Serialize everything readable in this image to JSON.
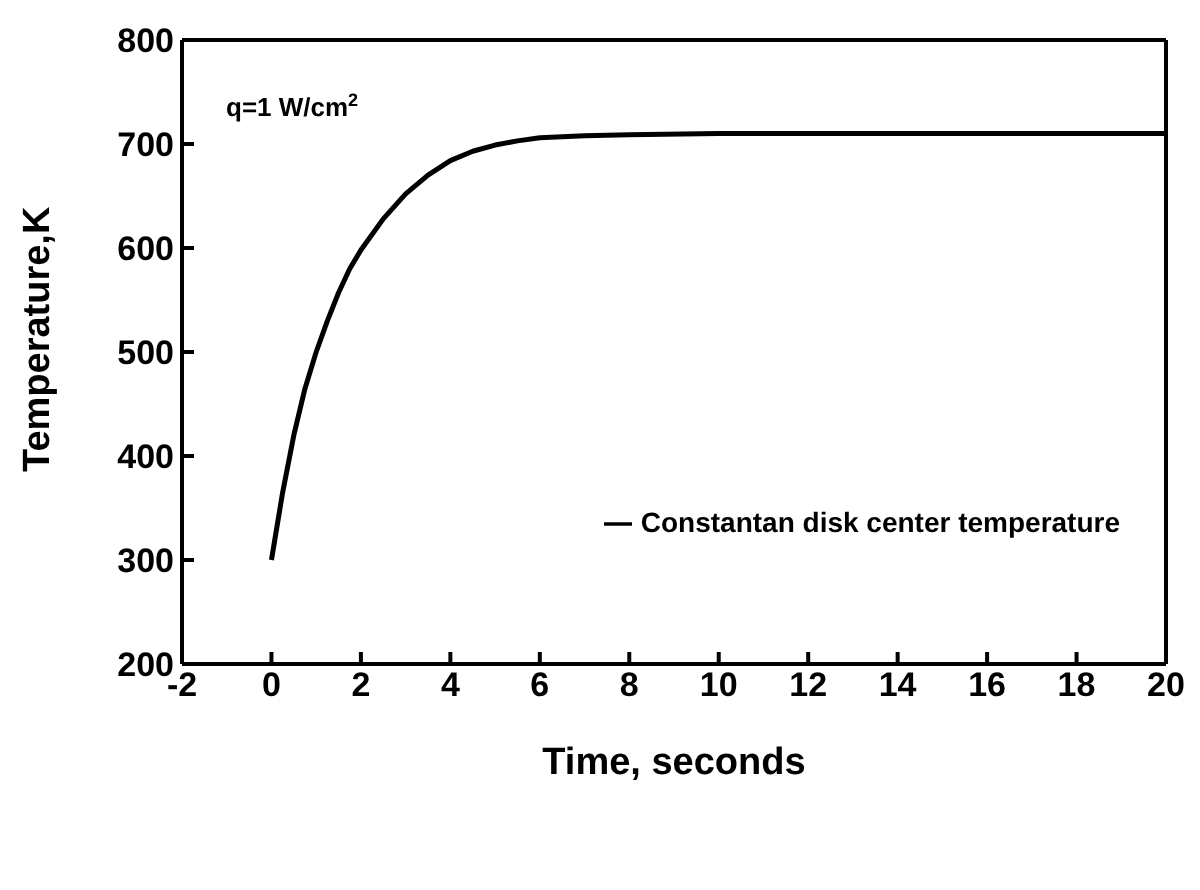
{
  "chart_data": {
    "type": "line",
    "xlabel": "Time, seconds",
    "ylabel": "Temperature,K",
    "annotations": [
      "q=1 W/cm$^{2}$"
    ],
    "series": [
      {
        "name": "Constantan disk center temperature",
        "color": "#000000",
        "x": [
          0,
          0.25,
          0.5,
          0.75,
          1,
          1.25,
          1.5,
          1.75,
          2,
          2.5,
          3,
          3.5,
          4,
          4.5,
          5,
          5.5,
          6,
          7,
          8,
          10,
          12,
          14,
          16,
          18,
          20
        ],
        "values": [
          300,
          365,
          420,
          465,
          500,
          530,
          557,
          580,
          598,
          628,
          652,
          670,
          684,
          693,
          699,
          703,
          706,
          708,
          709,
          710,
          710,
          710,
          710,
          710,
          710
        ]
      }
    ],
    "xlim": [
      -2,
      20
    ],
    "xticks": [
      -2,
      0,
      2,
      4,
      6,
      8,
      10,
      12,
      14,
      16,
      18,
      20
    ],
    "ylim": [
      200,
      800
    ],
    "yticks": [
      200,
      300,
      400,
      500,
      600,
      700,
      800
    ],
    "legend": "right",
    "line_style": "solid",
    "marker": "none"
  }
}
